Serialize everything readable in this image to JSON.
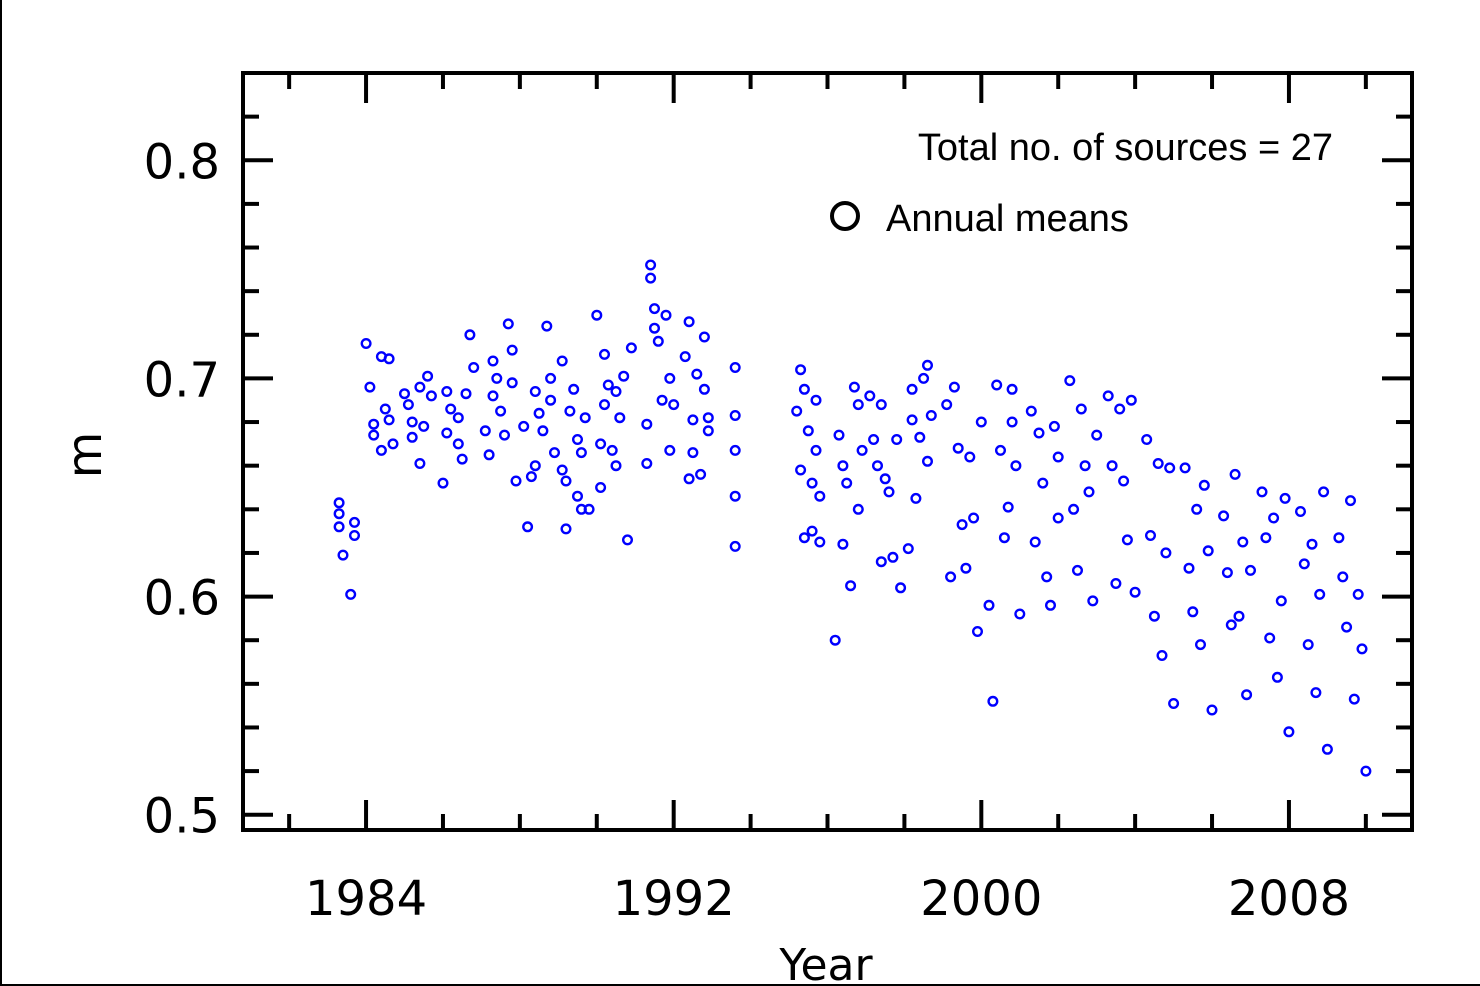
{
  "chart_data": {
    "type": "scatter",
    "title": "",
    "xlabel": "Year",
    "ylabel": "m",
    "xlim": [
      1980.8,
      2011.2
    ],
    "ylim": [
      0.493,
      0.84
    ],
    "x_ticks": [
      1984,
      1992,
      2000,
      2008
    ],
    "x_tick_labels": [
      "1984",
      "1992",
      "2000",
      "2008"
    ],
    "y_ticks": [
      0.5,
      0.6,
      0.7,
      0.8
    ],
    "y_tick_labels": [
      "0.5",
      "0.6",
      "0.7",
      "0.8"
    ],
    "annotation": "Total no. of sources = 27",
    "legend": {
      "position": "top-right",
      "entries": [
        {
          "label": "Annual means",
          "marker": "open-circle"
        }
      ]
    },
    "marker_color": "#0000ff",
    "series": [
      {
        "name": "Annual means",
        "points": [
          [
            1983.3,
            0.643
          ],
          [
            1983.3,
            0.638
          ],
          [
            1983.3,
            0.632
          ],
          [
            1983.4,
            0.619
          ],
          [
            1983.6,
            0.601
          ],
          [
            1983.7,
            0.634
          ],
          [
            1983.7,
            0.628
          ],
          [
            1984.0,
            0.716
          ],
          [
            1984.1,
            0.696
          ],
          [
            1984.2,
            0.679
          ],
          [
            1984.2,
            0.674
          ],
          [
            1984.4,
            0.71
          ],
          [
            1984.4,
            0.667
          ],
          [
            1984.5,
            0.686
          ],
          [
            1984.6,
            0.709
          ],
          [
            1984.6,
            0.681
          ],
          [
            1984.7,
            0.67
          ],
          [
            1985.0,
            0.693
          ],
          [
            1985.1,
            0.688
          ],
          [
            1985.2,
            0.68
          ],
          [
            1985.2,
            0.673
          ],
          [
            1985.4,
            0.696
          ],
          [
            1985.4,
            0.661
          ],
          [
            1985.5,
            0.678
          ],
          [
            1985.6,
            0.701
          ],
          [
            1985.7,
            0.692
          ],
          [
            1986.0,
            0.652
          ],
          [
            1986.1,
            0.694
          ],
          [
            1986.1,
            0.675
          ],
          [
            1986.2,
            0.686
          ],
          [
            1986.4,
            0.67
          ],
          [
            1986.4,
            0.682
          ],
          [
            1986.5,
            0.663
          ],
          [
            1986.6,
            0.693
          ],
          [
            1986.7,
            0.72
          ],
          [
            1986.8,
            0.705
          ],
          [
            1987.1,
            0.676
          ],
          [
            1987.2,
            0.665
          ],
          [
            1987.3,
            0.708
          ],
          [
            1987.3,
            0.692
          ],
          [
            1987.4,
            0.7
          ],
          [
            1987.5,
            0.685
          ],
          [
            1987.6,
            0.674
          ],
          [
            1987.7,
            0.725
          ],
          [
            1987.8,
            0.713
          ],
          [
            1987.8,
            0.698
          ],
          [
            1987.9,
            0.653
          ],
          [
            1988.1,
            0.678
          ],
          [
            1988.2,
            0.632
          ],
          [
            1988.3,
            0.655
          ],
          [
            1988.4,
            0.694
          ],
          [
            1988.4,
            0.66
          ],
          [
            1988.5,
            0.684
          ],
          [
            1988.6,
            0.676
          ],
          [
            1988.7,
            0.724
          ],
          [
            1988.8,
            0.7
          ],
          [
            1988.8,
            0.69
          ],
          [
            1988.9,
            0.666
          ],
          [
            1989.1,
            0.708
          ],
          [
            1989.1,
            0.658
          ],
          [
            1989.2,
            0.631
          ],
          [
            1989.2,
            0.653
          ],
          [
            1989.3,
            0.685
          ],
          [
            1989.4,
            0.695
          ],
          [
            1989.5,
            0.672
          ],
          [
            1989.5,
            0.646
          ],
          [
            1989.6,
            0.666
          ],
          [
            1989.6,
            0.64
          ],
          [
            1989.7,
            0.682
          ],
          [
            1989.8,
            0.64
          ],
          [
            1990.0,
            0.729
          ],
          [
            1990.1,
            0.65
          ],
          [
            1990.1,
            0.67
          ],
          [
            1990.2,
            0.688
          ],
          [
            1990.2,
            0.711
          ],
          [
            1990.3,
            0.697
          ],
          [
            1990.4,
            0.667
          ],
          [
            1990.5,
            0.66
          ],
          [
            1990.5,
            0.694
          ],
          [
            1990.6,
            0.682
          ],
          [
            1990.7,
            0.701
          ],
          [
            1990.8,
            0.626
          ],
          [
            1990.9,
            0.714
          ],
          [
            1991.3,
            0.661
          ],
          [
            1991.3,
            0.679
          ],
          [
            1991.4,
            0.752
          ],
          [
            1991.4,
            0.746
          ],
          [
            1991.5,
            0.732
          ],
          [
            1991.5,
            0.723
          ],
          [
            1991.6,
            0.717
          ],
          [
            1991.7,
            0.69
          ],
          [
            1991.8,
            0.729
          ],
          [
            1991.9,
            0.7
          ],
          [
            1991.9,
            0.667
          ],
          [
            1992.0,
            0.688
          ],
          [
            1992.3,
            0.71
          ],
          [
            1992.4,
            0.654
          ],
          [
            1992.4,
            0.726
          ],
          [
            1992.5,
            0.681
          ],
          [
            1992.5,
            0.666
          ],
          [
            1992.6,
            0.702
          ],
          [
            1992.7,
            0.656
          ],
          [
            1992.8,
            0.719
          ],
          [
            1992.8,
            0.695
          ],
          [
            1992.9,
            0.676
          ],
          [
            1992.9,
            0.682
          ],
          [
            1993.6,
            0.705
          ],
          [
            1993.6,
            0.683
          ],
          [
            1993.6,
            0.667
          ],
          [
            1993.6,
            0.646
          ],
          [
            1993.6,
            0.623
          ],
          [
            1995.2,
            0.685
          ],
          [
            1995.3,
            0.704
          ],
          [
            1995.3,
            0.658
          ],
          [
            1995.4,
            0.695
          ],
          [
            1995.4,
            0.627
          ],
          [
            1995.5,
            0.676
          ],
          [
            1995.6,
            0.652
          ],
          [
            1995.6,
            0.63
          ],
          [
            1995.7,
            0.69
          ],
          [
            1995.7,
            0.667
          ],
          [
            1995.8,
            0.625
          ],
          [
            1995.8,
            0.646
          ],
          [
            1996.2,
            0.58
          ],
          [
            1996.3,
            0.674
          ],
          [
            1996.4,
            0.66
          ],
          [
            1996.4,
            0.624
          ],
          [
            1996.5,
            0.652
          ],
          [
            1996.6,
            0.605
          ],
          [
            1996.7,
            0.696
          ],
          [
            1996.8,
            0.688
          ],
          [
            1996.8,
            0.64
          ],
          [
            1996.9,
            0.667
          ],
          [
            1997.1,
            0.692
          ],
          [
            1997.2,
            0.672
          ],
          [
            1997.3,
            0.66
          ],
          [
            1997.4,
            0.616
          ],
          [
            1997.4,
            0.688
          ],
          [
            1997.5,
            0.654
          ],
          [
            1997.6,
            0.648
          ],
          [
            1997.7,
            0.618
          ],
          [
            1997.8,
            0.672
          ],
          [
            1997.9,
            0.604
          ],
          [
            1998.1,
            0.622
          ],
          [
            1998.2,
            0.695
          ],
          [
            1998.2,
            0.681
          ],
          [
            1998.3,
            0.645
          ],
          [
            1998.4,
            0.673
          ],
          [
            1998.5,
            0.7
          ],
          [
            1998.6,
            0.706
          ],
          [
            1998.6,
            0.662
          ],
          [
            1998.7,
            0.683
          ],
          [
            1999.1,
            0.688
          ],
          [
            1999.2,
            0.609
          ],
          [
            1999.3,
            0.696
          ],
          [
            1999.4,
            0.668
          ],
          [
            1999.5,
            0.633
          ],
          [
            1999.6,
            0.613
          ],
          [
            1999.7,
            0.664
          ],
          [
            1999.8,
            0.636
          ],
          [
            1999.9,
            0.584
          ],
          [
            2000.0,
            0.68
          ],
          [
            2000.2,
            0.596
          ],
          [
            2000.3,
            0.552
          ],
          [
            2000.4,
            0.697
          ],
          [
            2000.5,
            0.667
          ],
          [
            2000.6,
            0.627
          ],
          [
            2000.7,
            0.641
          ],
          [
            2000.8,
            0.695
          ],
          [
            2000.8,
            0.68
          ],
          [
            2000.9,
            0.66
          ],
          [
            2001.0,
            0.592
          ],
          [
            2001.3,
            0.685
          ],
          [
            2001.4,
            0.625
          ],
          [
            2001.5,
            0.675
          ],
          [
            2001.6,
            0.652
          ],
          [
            2001.7,
            0.609
          ],
          [
            2001.8,
            0.596
          ],
          [
            2001.9,
            0.678
          ],
          [
            2002.0,
            0.636
          ],
          [
            2002.0,
            0.664
          ],
          [
            2002.3,
            0.699
          ],
          [
            2002.4,
            0.64
          ],
          [
            2002.5,
            0.612
          ],
          [
            2002.6,
            0.686
          ],
          [
            2002.7,
            0.66
          ],
          [
            2002.8,
            0.648
          ],
          [
            2002.9,
            0.598
          ],
          [
            2003.0,
            0.674
          ],
          [
            2003.3,
            0.692
          ],
          [
            2003.4,
            0.66
          ],
          [
            2003.5,
            0.606
          ],
          [
            2003.6,
            0.686
          ],
          [
            2003.7,
            0.653
          ],
          [
            2003.8,
            0.626
          ],
          [
            2003.9,
            0.69
          ],
          [
            2004.0,
            0.602
          ],
          [
            2004.3,
            0.672
          ],
          [
            2004.4,
            0.628
          ],
          [
            2004.5,
            0.591
          ],
          [
            2004.6,
            0.661
          ],
          [
            2004.7,
            0.573
          ],
          [
            2004.8,
            0.62
          ],
          [
            2004.9,
            0.659
          ],
          [
            2005.0,
            0.551
          ],
          [
            2005.3,
            0.659
          ],
          [
            2005.4,
            0.613
          ],
          [
            2005.5,
            0.593
          ],
          [
            2005.6,
            0.64
          ],
          [
            2005.7,
            0.578
          ],
          [
            2005.8,
            0.651
          ],
          [
            2005.9,
            0.621
          ],
          [
            2006.0,
            0.548
          ],
          [
            2006.3,
            0.637
          ],
          [
            2006.4,
            0.611
          ],
          [
            2006.5,
            0.587
          ],
          [
            2006.6,
            0.656
          ],
          [
            2006.7,
            0.591
          ],
          [
            2006.8,
            0.625
          ],
          [
            2006.9,
            0.555
          ],
          [
            2007.0,
            0.612
          ],
          [
            2007.3,
            0.648
          ],
          [
            2007.4,
            0.627
          ],
          [
            2007.5,
            0.581
          ],
          [
            2007.6,
            0.636
          ],
          [
            2007.7,
            0.563
          ],
          [
            2007.8,
            0.598
          ],
          [
            2007.9,
            0.645
          ],
          [
            2008.0,
            0.538
          ],
          [
            2008.3,
            0.639
          ],
          [
            2008.4,
            0.615
          ],
          [
            2008.5,
            0.578
          ],
          [
            2008.6,
            0.624
          ],
          [
            2008.7,
            0.556
          ],
          [
            2008.8,
            0.601
          ],
          [
            2008.9,
            0.648
          ],
          [
            2009.0,
            0.53
          ],
          [
            2009.3,
            0.627
          ],
          [
            2009.4,
            0.609
          ],
          [
            2009.5,
            0.586
          ],
          [
            2009.6,
            0.644
          ],
          [
            2009.7,
            0.553
          ],
          [
            2009.8,
            0.601
          ],
          [
            2009.9,
            0.576
          ],
          [
            2010.0,
            0.52
          ]
        ]
      }
    ]
  }
}
